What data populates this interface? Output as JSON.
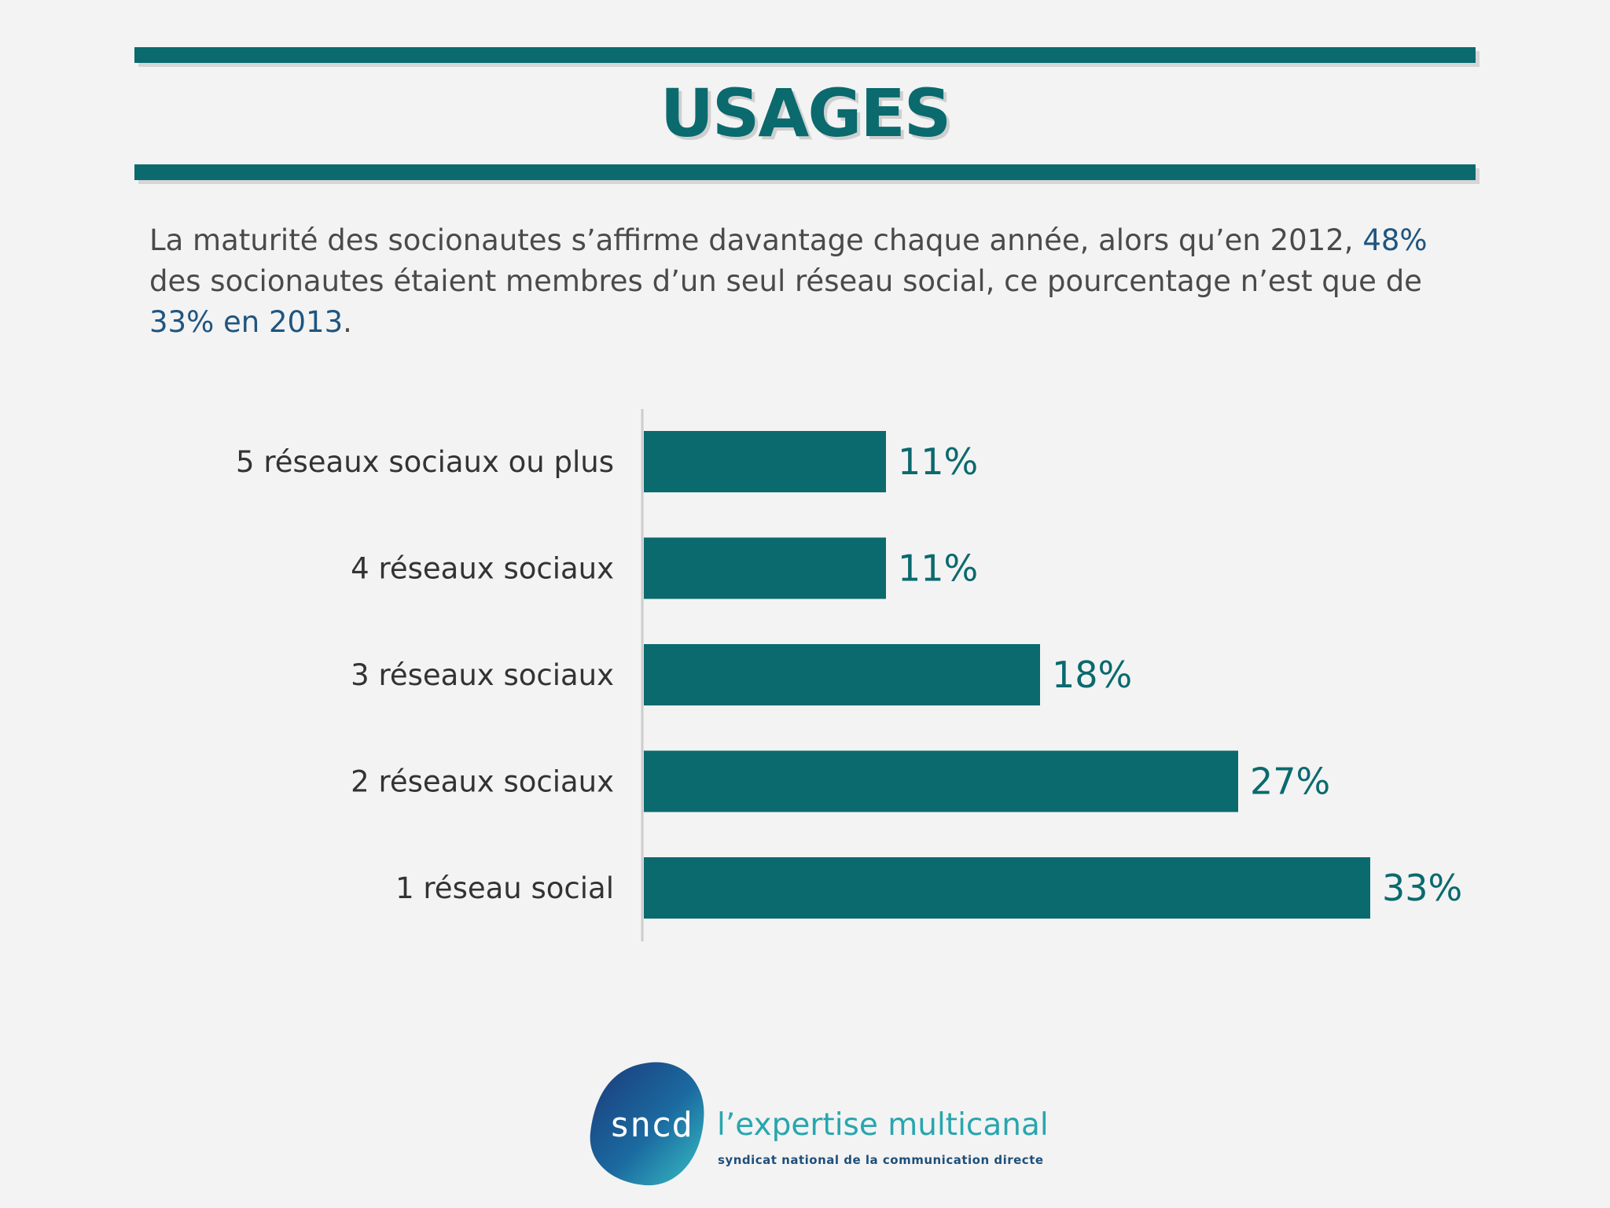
{
  "header": {
    "title": "USAGES"
  },
  "intro": {
    "part1": "La maturité des socionautes s’affirme davantage chaque année, alors qu’en 2012, ",
    "highlight1": "48%",
    "part2": " des socionautes étaient membres d’un seul réseau social, ce pourcentage n’est que de ",
    "highlight2": "33% en 2013",
    "part3": "."
  },
  "colors": {
    "accent": "#0a6a6e",
    "highlight": "#1f5580"
  },
  "chart_data": {
    "type": "bar",
    "orientation": "horizontal",
    "categories": [
      "5 réseaux sociaux ou plus",
      "4 réseaux sociaux",
      "3 réseaux sociaux",
      "2 réseaux sociaux",
      "1 réseau social"
    ],
    "values": [
      11,
      11,
      18,
      27,
      33
    ],
    "value_labels": [
      "11%",
      "11%",
      "18%",
      "27%",
      "33%"
    ],
    "unit": "%",
    "title": "",
    "xlabel": "",
    "ylabel": "",
    "grid": false,
    "legend": "none"
  },
  "footer": {
    "logo_text": "sncd",
    "tagline": "l’expertise multicanal",
    "subline": "syndicat national de la communication directe"
  }
}
